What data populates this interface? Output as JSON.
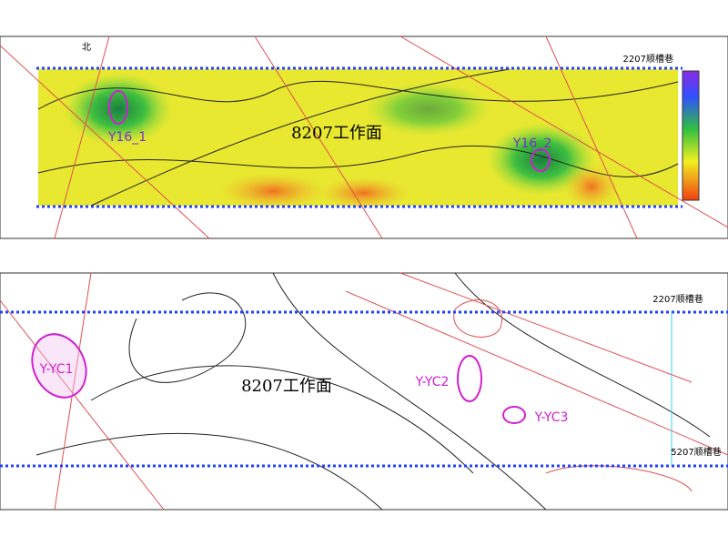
{
  "top_panel": {
    "north": "北",
    "workface": "8207工作面",
    "roadway_top": "2207顺槽巷",
    "anomalies": [
      "Y16_1",
      "Y16_2"
    ]
  },
  "bottom_panel": {
    "workface": "8207工作面",
    "roadway_top": "2207顺槽巷",
    "roadway_bottom": "5207顺槽巷",
    "anomalies": [
      "Y-YC1",
      "Y-YC2",
      "Y-YC3"
    ]
  }
}
